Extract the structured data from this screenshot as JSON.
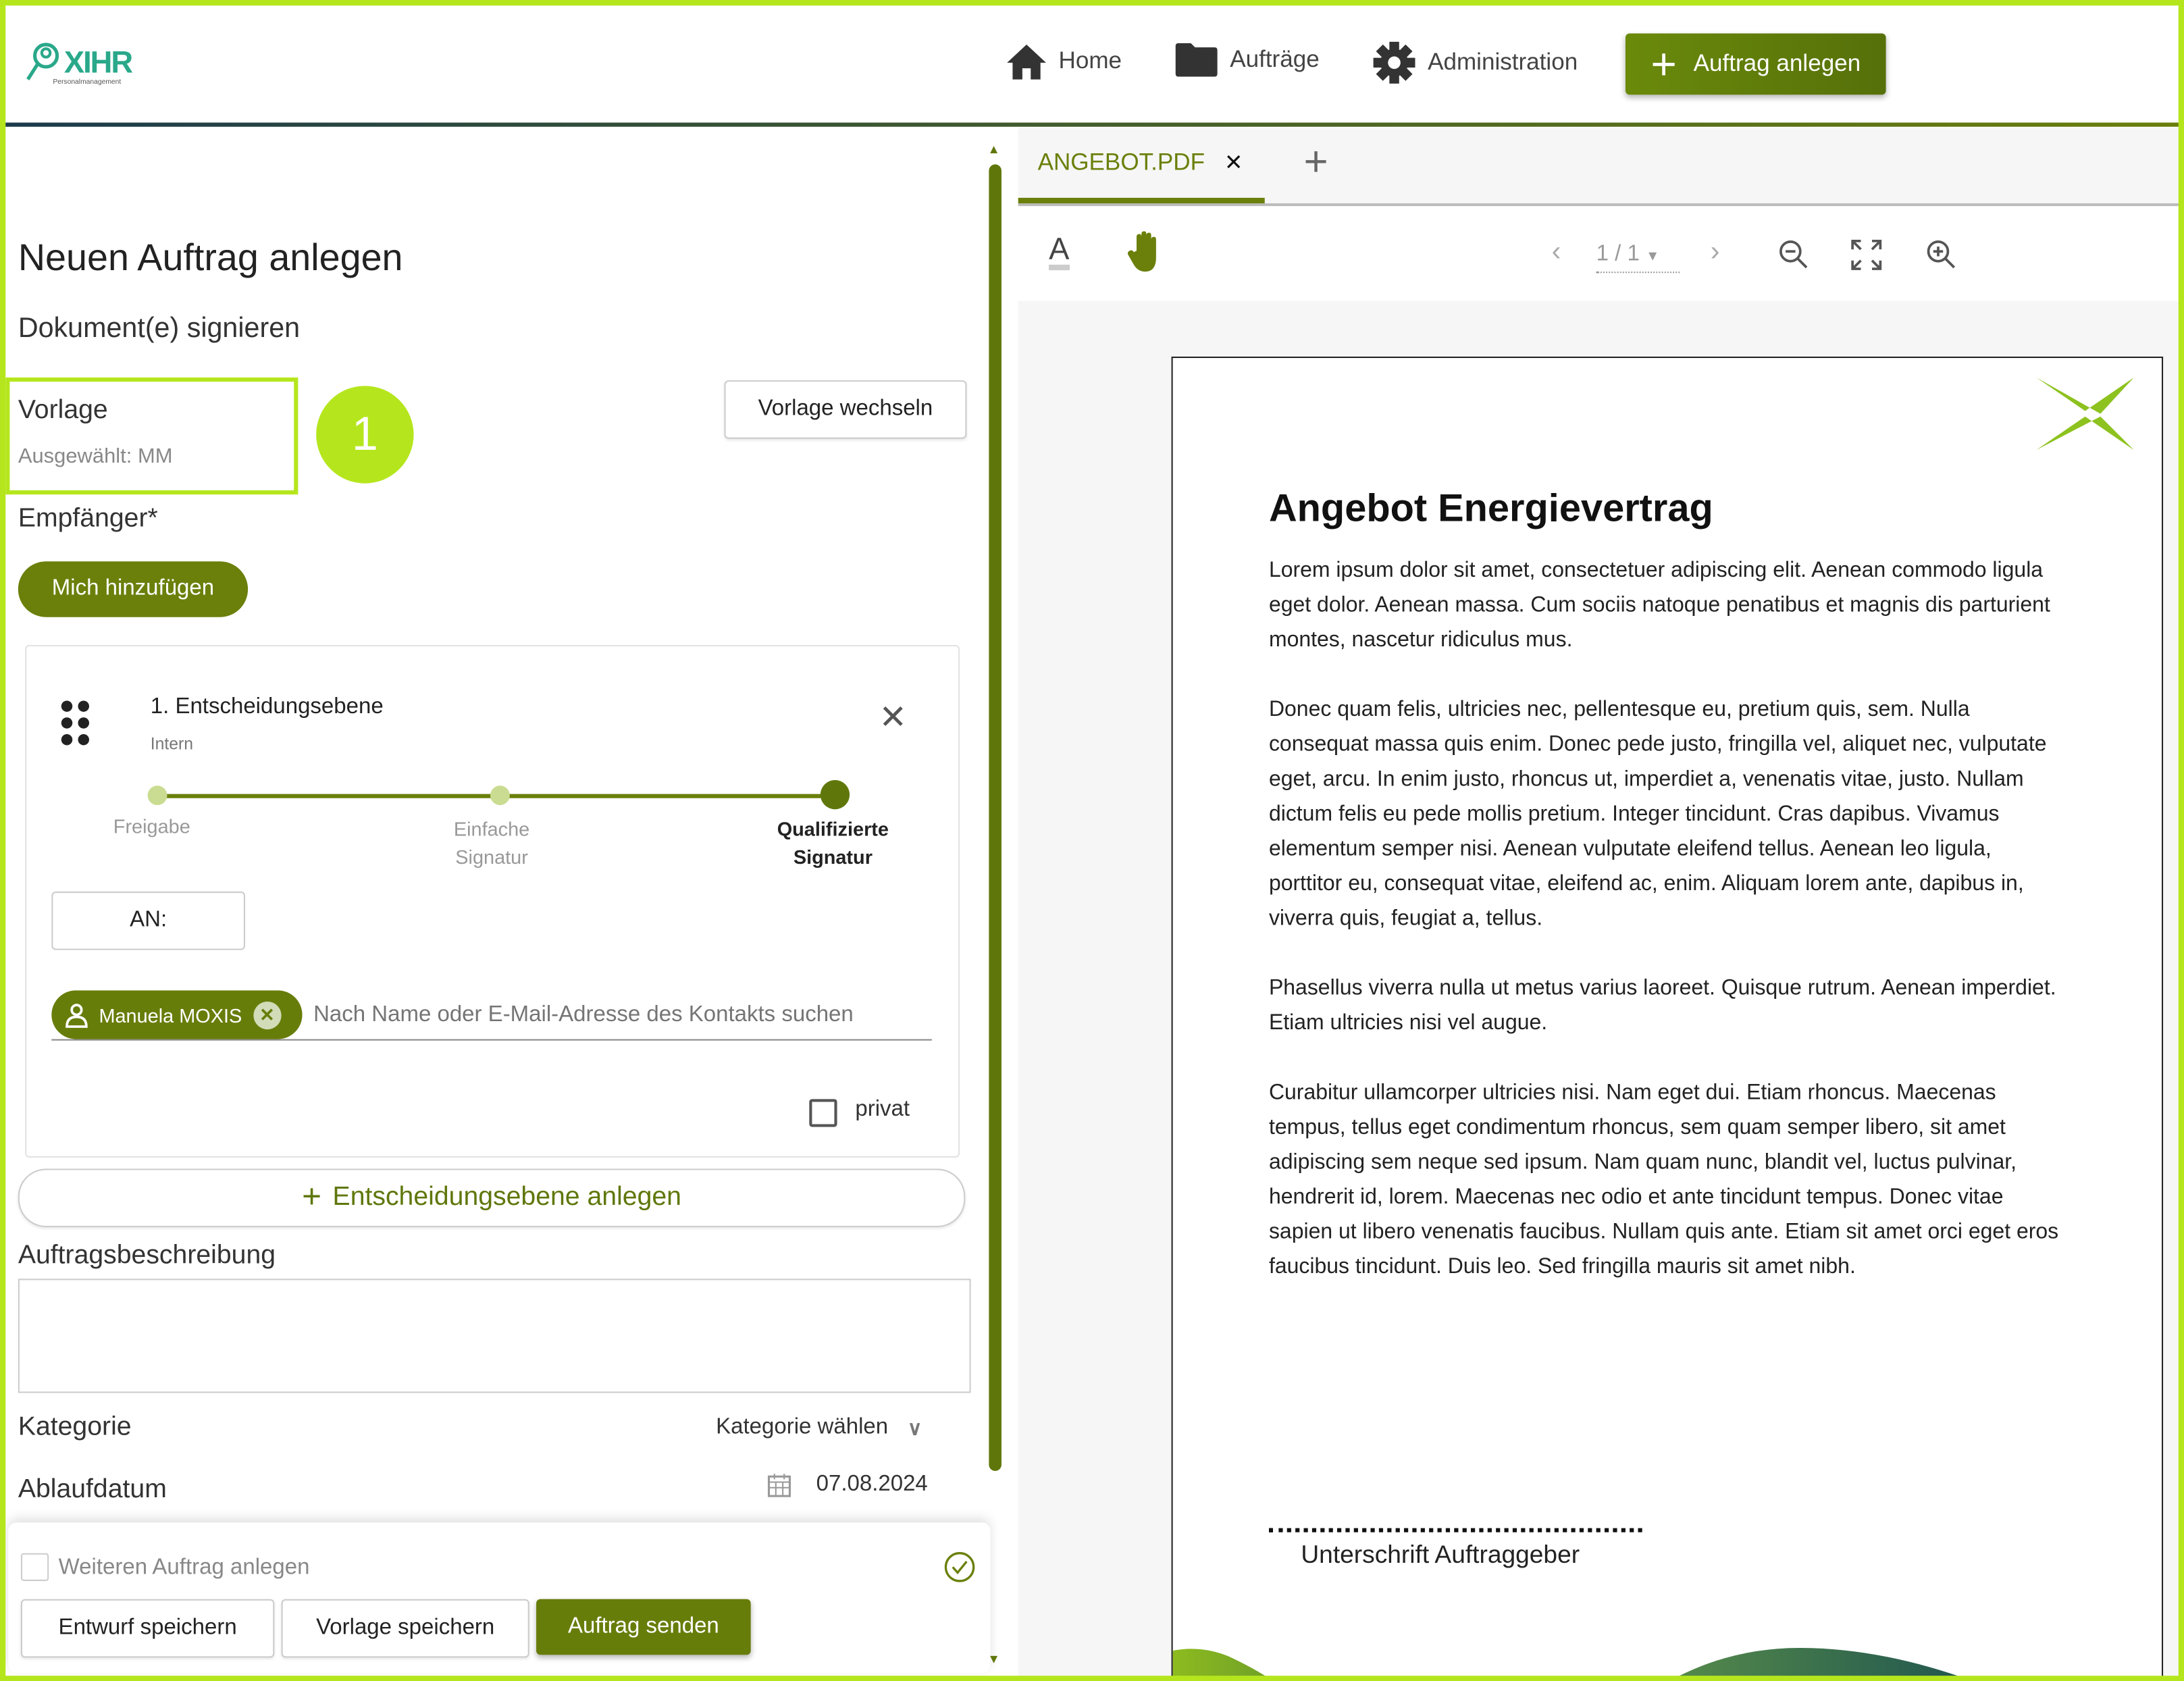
{
  "header": {
    "logo_text": "XIHR",
    "logo_sub": "Personalmanagement",
    "nav": [
      {
        "label": "Home",
        "icon": "home-icon"
      },
      {
        "label": "Aufträge",
        "icon": "folder-icon"
      },
      {
        "label": "Administration",
        "icon": "gear-icon"
      }
    ],
    "primary_button": "Auftrag anlegen"
  },
  "form": {
    "title": "Neuen Auftrag anlegen",
    "subtitle": "Dokument(e) signieren",
    "template_label": "Vorlage",
    "template_selected": "Ausgewählt: MM",
    "change_template": "Vorlage wechseln",
    "callout_number": "1",
    "recipients_label": "Empfänger*",
    "add_me": "Mich hinzufügen",
    "level": {
      "title": "1. Entscheidungsebene",
      "type": "Intern",
      "steps": [
        {
          "label": "Freigabe",
          "line2": ""
        },
        {
          "label": "Einfache",
          "line2": "Signatur"
        },
        {
          "label": "Qualifizierte",
          "line2": "Signatur"
        }
      ],
      "selected_step": "Qualifizierte Signatur",
      "to_label": "AN:",
      "recipient_chip": "Manuela MOXIS",
      "search_placeholder": "Nach Name oder E-Mail-Adresse des Kontakts suchen",
      "private_label": "privat",
      "private_checked": false
    },
    "add_level": "Entscheidungsebene anlegen",
    "description_label": "Auftragsbeschreibung",
    "description_value": "",
    "category_label": "Kategorie",
    "category_value": "Kategorie wählen",
    "expiry_label": "Ablaufdatum",
    "expiry_value": "07.08.2024",
    "another_order": "Weiteren Auftrag anlegen",
    "another_checked": false,
    "save_draft": "Entwurf speichern",
    "save_template": "Vorlage speichern",
    "send": "Auftrag senden"
  },
  "viewer": {
    "tab": "ANGEBOT.PDF",
    "page_indicator": "1 / 1",
    "document": {
      "title": "Angebot Energievertrag",
      "paragraphs": [
        "Lorem ipsum dolor sit amet, consectetuer adipiscing elit. Aenean commodo ligula eget dolor. Aenean massa. Cum sociis natoque penatibus et magnis dis parturient montes, nascetur ridiculus mus.",
        "Donec quam felis, ultricies nec, pellentesque eu, pretium quis, sem. Nulla consequat massa quis enim. Donec pede justo, fringilla vel, aliquet nec, vulputate eget, arcu. In enim justo, rhoncus ut, imperdiet a, venenatis vitae, justo. Nullam dictum felis eu pede mollis pretium. Integer tincidunt. Cras dapibus. Vivamus elementum semper nisi. Aenean vulputate eleifend tellus. Aenean leo ligula, porttitor eu, consequat vitae, eleifend ac, enim. Aliquam lorem ante, dapibus in, viverra quis, feugiat a, tellus.",
        "Phasellus viverra nulla ut metus varius laoreet. Quisque rutrum. Aenean imperdiet. Etiam ultricies nisi vel augue.",
        "Curabitur ullamcorper ultricies nisi. Nam eget dui. Etiam rhoncus. Maecenas tempus, tellus eget condimentum rhoncus, sem quam semper libero, sit amet adipiscing sem neque sed ipsum. Nam quam nunc, blandit vel, luctus pulvinar, hendrerit id, lorem. Maecenas nec odio et ante tincidunt tempus. Donec vitae sapien ut libero venenatis faucibus. Nullam quis ante. Etiam sit amet orci eget eros faucibus tincidunt. Duis leo. Sed fringilla mauris sit amet nibh."
      ],
      "signature_label": "Unterschrift Auftraggeber"
    }
  },
  "colors": {
    "accent": "#6a8a0b",
    "highlight": "#b5e61d",
    "dark": "#1b3a4b"
  }
}
